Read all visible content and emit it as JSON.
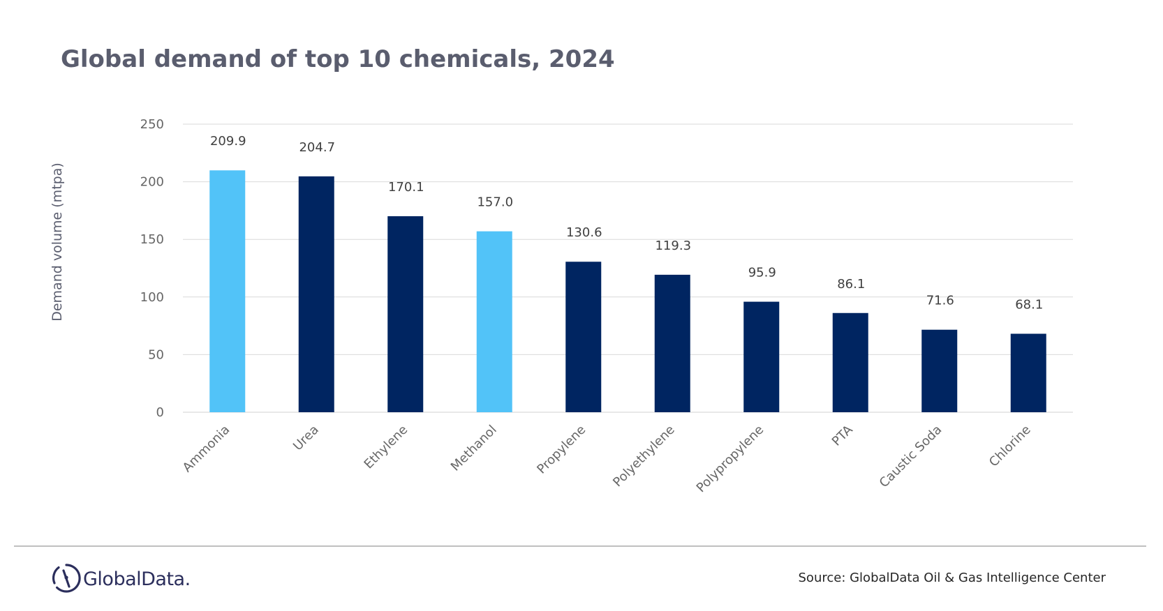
{
  "brand": {
    "name": "GlobalData.",
    "logo_icon": "globaldata-logo-icon"
  },
  "source": "Source: GlobalData Oil & Gas Intelligence Center",
  "chart_data": {
    "type": "bar",
    "title": "Global demand of top 10 chemicals, 2024",
    "xlabel": "",
    "ylabel": "Demand volume (mtpa)",
    "ylim": [
      0,
      250
    ],
    "yticks": [
      0,
      50,
      100,
      150,
      200,
      250
    ],
    "grid": true,
    "categories": [
      "Ammonia",
      "Urea",
      "Ethylene",
      "Methanol",
      "Propylene",
      "Polyethylene",
      "Polypropylene",
      "PTA",
      "Caustic Soda",
      "Chlorine"
    ],
    "values": [
      209.9,
      204.7,
      170.1,
      157.0,
      130.6,
      119.3,
      95.9,
      86.1,
      71.6,
      68.1
    ],
    "value_labels": [
      "209.9",
      "204.7",
      "170.1",
      "157.0",
      "130.6",
      "119.3",
      "95.9",
      "86.1",
      "71.6",
      "68.1"
    ],
    "highlighted": [
      true,
      false,
      false,
      true,
      false,
      false,
      false,
      false,
      false,
      false
    ],
    "colors": {
      "default_bar": "#002561",
      "highlight_bar": "#52c3f8"
    }
  }
}
